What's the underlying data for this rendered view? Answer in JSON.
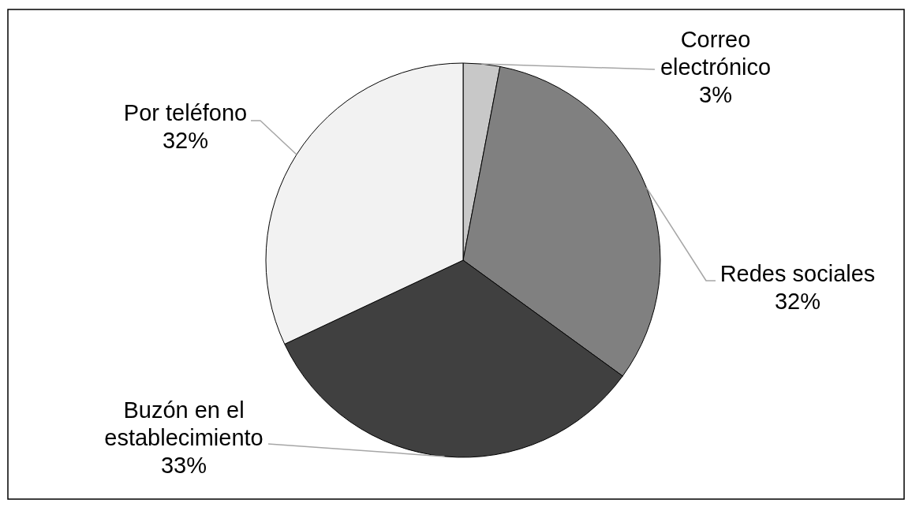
{
  "chart_data": {
    "type": "pie",
    "categories": [
      "Correo electrónico",
      "Redes sociales",
      "Buzón en el establecimiento",
      "Por teléfono"
    ],
    "values": [
      3,
      32,
      33,
      32
    ],
    "colors": [
      "#c8c8c8",
      "#808080",
      "#404040",
      "#f2f2f2"
    ],
    "value_labels": [
      "3%",
      "32%",
      "33%",
      "32%"
    ]
  }
}
